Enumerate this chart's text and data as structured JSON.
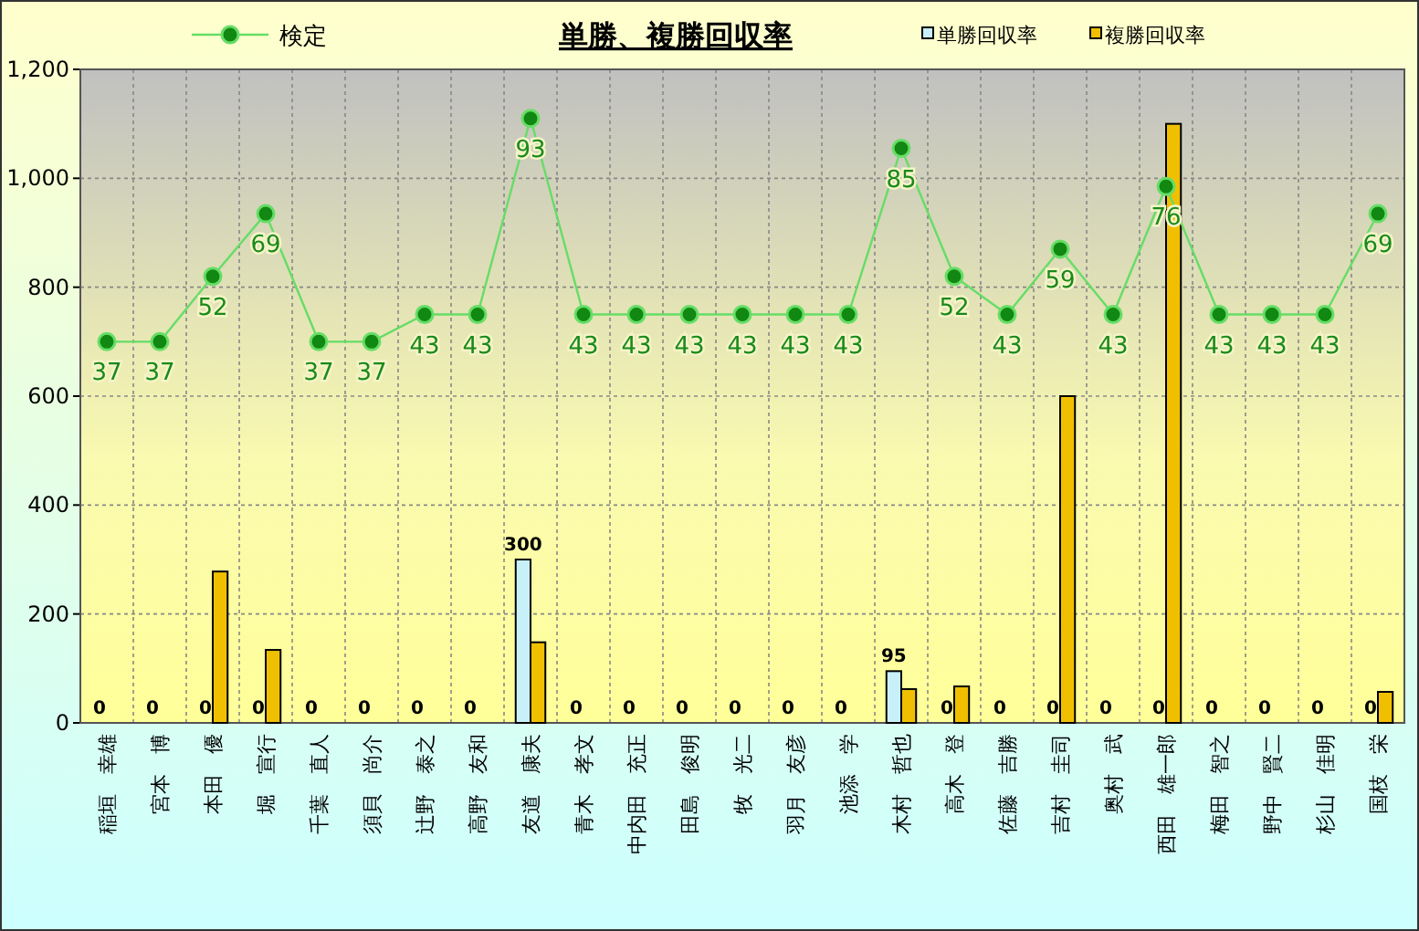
{
  "chart_data": {
    "type": "bar",
    "title": "単勝、複勝回収率",
    "categories": [
      "稲垣　幸雄",
      "宮本　博",
      "本田　優",
      "堀　宣行",
      "千葉　直人",
      "須貝　尚介",
      "辻野　泰之",
      "高野　友和",
      "友道　康夫",
      "青木　孝文",
      "中内田　充正",
      "田島　俊明",
      "牧　光二",
      "羽月　友彦",
      "池添　学",
      "木村　哲也",
      "高木　登",
      "佐藤　吉勝",
      "吉村　圭司",
      "奥村　武",
      "西田　雄一郎",
      "梅田　智之",
      "野中　賢二",
      "杉山　佳明",
      "国枝　栄"
    ],
    "ylim": [
      0,
      1200
    ],
    "yticks": [
      0,
      200,
      400,
      600,
      800,
      {
        "value": 1000,
        "label": "1,000"
      },
      {
        "value": 1200,
        "label": "1,200"
      }
    ],
    "grid": true,
    "legend": "top",
    "marker": "circle",
    "annotations": [
      {
        "text": "37",
        "x": "稲垣　幸雄",
        "y": 700
      },
      {
        "text": "37",
        "x": "宮本　博",
        "y": 700
      },
      {
        "text": "52",
        "x": "本田　優",
        "y": 820
      },
      {
        "text": "69",
        "x": "堀　宣行",
        "y": 935
      },
      {
        "text": "37",
        "x": "千葉　直人",
        "y": 700
      },
      {
        "text": "37",
        "x": "須貝　尚介",
        "y": 700
      },
      {
        "text": "43",
        "x": "辻野　泰之",
        "y": 750
      },
      {
        "text": "43",
        "x": "高野　友和",
        "y": 750
      },
      {
        "text": "93",
        "x": "友道　康夫",
        "y": 1110
      },
      {
        "text": "43",
        "x": "青木　孝文",
        "y": 750
      },
      {
        "text": "43",
        "x": "中内田　充正",
        "y": 750
      },
      {
        "text": "43",
        "x": "田島　俊明",
        "y": 750
      },
      {
        "text": "43",
        "x": "牧　光二",
        "y": 750
      },
      {
        "text": "43",
        "x": "羽月　友彦",
        "y": 750
      },
      {
        "text": "43",
        "x": "池添　学",
        "y": 750
      },
      {
        "text": "85",
        "x": "木村　哲也",
        "y": 1055
      },
      {
        "text": "52",
        "x": "高木　登",
        "y": 820
      },
      {
        "text": "43",
        "x": "佐藤　吉勝",
        "y": 750
      },
      {
        "text": "59",
        "x": "吉村　圭司",
        "y": 870
      },
      {
        "text": "43",
        "x": "奥村　武",
        "y": 750
      },
      {
        "text": "76",
        "x": "西田　雄一郎",
        "y": 985
      },
      {
        "text": "43",
        "x": "梅田　智之",
        "y": 750
      },
      {
        "text": "43",
        "x": "野中　賢二",
        "y": 750
      },
      {
        "text": "43",
        "x": "杉山　佳明",
        "y": 750
      },
      {
        "text": "69",
        "x": "国枝　栄",
        "y": 935
      }
    ],
    "series": [
      {
        "name": "検定",
        "type": "line",
        "color": "#66dd66",
        "values": [
          700,
          700,
          820,
          935,
          700,
          700,
          750,
          750,
          1110,
          750,
          750,
          750,
          750,
          750,
          750,
          1055,
          820,
          750,
          870,
          750,
          985,
          750,
          750,
          750,
          935
        ]
      },
      {
        "name": "単勝回収率",
        "color": "#c8f0f8",
        "values": [
          0,
          0,
          0,
          0,
          0,
          0,
          0,
          0,
          300,
          0,
          0,
          0,
          0,
          0,
          0,
          95,
          0,
          0,
          0,
          0,
          0,
          0,
          0,
          0,
          0
        ],
        "value_labels": [
          "0",
          "0",
          "0",
          "0",
          "0",
          "0",
          "0",
          "0",
          "300",
          "0",
          "0",
          "0",
          "0",
          "0",
          "0",
          "95",
          "0",
          "0",
          "0",
          "0",
          "0",
          "0",
          "0",
          "0",
          "0"
        ]
      },
      {
        "name": "複勝回収率",
        "color": "#f0c000",
        "values": [
          0,
          0,
          278,
          134,
          0,
          0,
          0,
          0,
          148,
          0,
          0,
          0,
          0,
          0,
          0,
          62,
          67,
          0,
          600,
          0,
          1100,
          0,
          0,
          0,
          57
        ]
      }
    ]
  }
}
